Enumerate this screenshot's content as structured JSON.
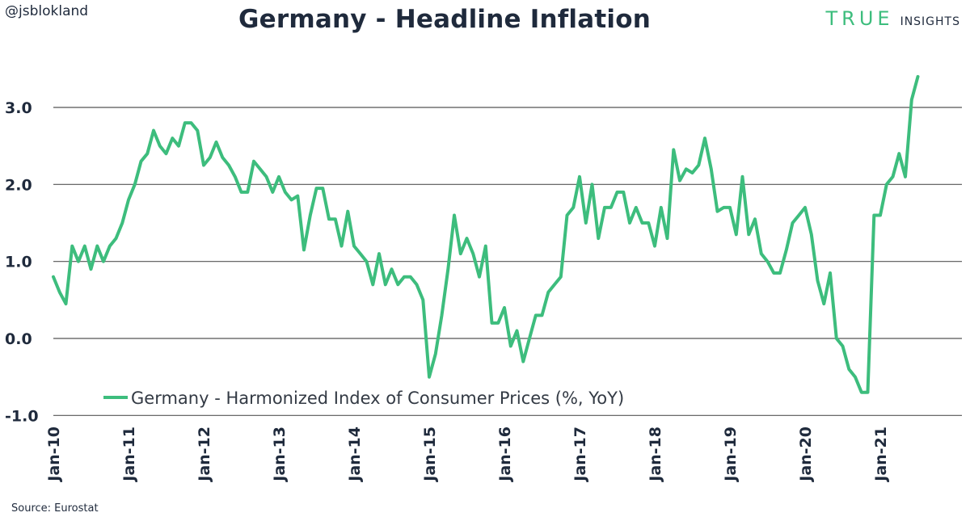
{
  "header": {
    "handle": "@jsblokland",
    "brand_true": "TRUE",
    "brand_insights": "INSIGHTS"
  },
  "colors": {
    "line": "#3dbd7d",
    "text": "#1f2a3c",
    "grid": "#555555"
  },
  "footer": {
    "source": "Source: Eurostat"
  },
  "chart_data": {
    "type": "line",
    "title": "Germany - Headline Inflation",
    "xlabel": "",
    "ylabel": "",
    "ylim": [
      -1.0,
      3.5
    ],
    "yticks": [
      3.0,
      2.0,
      1.0,
      0.0,
      -1.0
    ],
    "ytick_labels": [
      "3.0",
      "2.0",
      "1.0",
      "0.0",
      "-1.0"
    ],
    "xticks": [
      "Jan-10",
      "Jan-11",
      "Jan-12",
      "Jan-13",
      "Jan-14",
      "Jan-15",
      "Jan-16",
      "Jan-17",
      "Jan-18",
      "Jan-19",
      "Jan-20",
      "Jan-21"
    ],
    "x_start": "2010-01",
    "x_end": "2021-08",
    "grid": "horizontal",
    "legend": "bottom-left",
    "series": [
      {
        "name": "Germany - Harmonized Index of Consumer Prices (%, YoY)",
        "values": [
          0.8,
          0.6,
          0.45,
          1.2,
          1.0,
          1.2,
          0.9,
          1.2,
          1.0,
          1.2,
          1.3,
          1.5,
          1.8,
          2.0,
          2.3,
          2.4,
          2.7,
          2.5,
          2.4,
          2.6,
          2.5,
          2.8,
          2.8,
          2.7,
          2.25,
          2.35,
          2.55,
          2.35,
          2.25,
          2.1,
          1.9,
          1.9,
          2.3,
          2.2,
          2.1,
          1.9,
          2.1,
          1.9,
          1.8,
          1.85,
          1.15,
          1.6,
          1.95,
          1.95,
          1.55,
          1.55,
          1.2,
          1.65,
          1.2,
          1.1,
          1.0,
          0.7,
          1.1,
          0.7,
          0.9,
          0.7,
          0.8,
          0.8,
          0.7,
          0.5,
          -0.5,
          -0.2,
          0.3,
          0.9,
          1.6,
          1.1,
          1.3,
          1.1,
          0.8,
          1.2,
          0.2,
          0.2,
          0.4,
          -0.1,
          0.1,
          -0.3,
          0.0,
          0.3,
          0.3,
          0.6,
          0.7,
          0.8,
          1.6,
          1.7,
          2.1,
          1.5,
          2.0,
          1.3,
          1.7,
          1.7,
          1.9,
          1.9,
          1.5,
          1.7,
          1.5,
          1.5,
          1.2,
          1.7,
          1.3,
          2.45,
          2.05,
          2.2,
          2.15,
          2.25,
          2.6,
          2.2,
          1.65,
          1.7,
          1.7,
          1.35,
          2.1,
          1.35,
          1.55,
          1.1,
          1.0,
          0.85,
          0.85,
          1.15,
          1.5,
          1.6,
          1.7,
          1.35,
          0.75,
          0.45,
          0.85,
          0.0,
          -0.1,
          -0.4,
          -0.5,
          -0.7,
          -0.7,
          1.6,
          1.6,
          2.0,
          2.1,
          2.4,
          2.1,
          3.1,
          3.4
        ]
      }
    ]
  }
}
